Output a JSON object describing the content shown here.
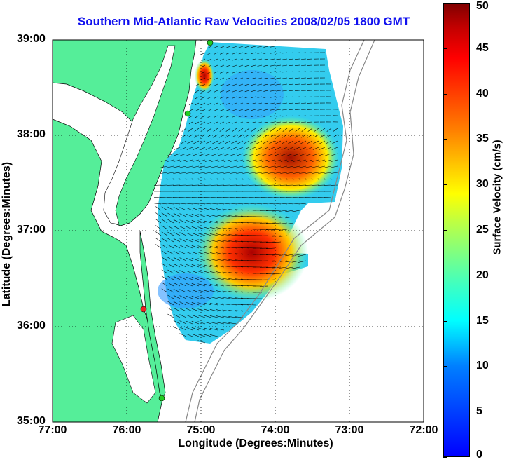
{
  "title": "Southern Mid-Atlantic Raw Velocities 2008/02/05 1800 GMT",
  "xlabel": "Longitude (Degrees:Minutes)",
  "ylabel": "Latitude (Degrees:Minutes)",
  "colorbar_label": "Surface Velocity (cm/s)",
  "x_ticks": [
    "77:00",
    "76:00",
    "75:00",
    "74:00",
    "73:00",
    "72:00"
  ],
  "y_ticks": [
    "39:00",
    "38:00",
    "37:00",
    "36:00",
    "35:00"
  ],
  "colorbar_ticks": [
    "50",
    "45",
    "40",
    "35",
    "30",
    "25",
    "20",
    "15",
    "10",
    "5",
    "0"
  ],
  "colors": {
    "land": "#55ee99",
    "title": "#1010ee",
    "station_green": "#22cc22",
    "station_red": "#ee2222"
  }
}
